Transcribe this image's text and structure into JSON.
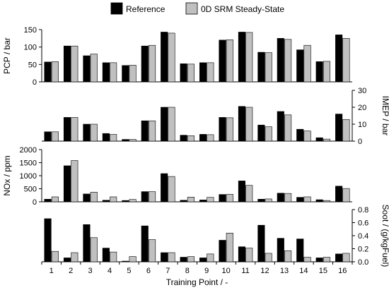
{
  "chart_data": {
    "type": "bar",
    "legend": {
      "placement": "top-center",
      "entries": [
        {
          "name": "Reference",
          "color": "#000000"
        },
        {
          "name": "0D SRM Steady-State",
          "color": "#c0c0c0"
        }
      ]
    },
    "xlabel": "Training Point / -",
    "categories": [
      "1",
      "2",
      "3",
      "4",
      "5",
      "6",
      "7",
      "8",
      "9",
      "10",
      "11",
      "12",
      "13",
      "14",
      "15",
      "16"
    ],
    "panels": [
      {
        "id": "pcp",
        "ylabel": "PCP / bar",
        "axis_side": "left",
        "ylim": [
          0,
          150
        ],
        "yticks": [
          0,
          50,
          100,
          150
        ],
        "series": [
          {
            "name": "Reference",
            "values": [
              57,
              103,
              75,
              55,
              47,
              103,
              143,
              52,
              55,
              120,
              143,
              85,
              125,
              92,
              58,
              135
            ]
          },
          {
            "name": "0D SRM Steady-State",
            "values": [
              58,
              103,
              80,
              55,
              48,
              105,
              140,
              51,
              55,
              121,
              142,
              84,
              122,
              105,
              59,
              125
            ]
          }
        ]
      },
      {
        "id": "imep",
        "ylabel": "IMEP / bar",
        "axis_side": "right",
        "ylim": [
          0,
          30
        ],
        "yticks": [
          0,
          10,
          20,
          30
        ],
        "series": [
          {
            "name": "Reference",
            "values": [
              5.5,
              14,
              10,
              4.5,
              1,
              12,
              20,
              3.5,
              4,
              14,
              20.5,
              9.5,
              17.5,
              7,
              2,
              16
            ]
          },
          {
            "name": "0D SRM Steady-State",
            "values": [
              5.5,
              14,
              10,
              4,
              1,
              12,
              20,
              3.2,
              3.8,
              13.8,
              20,
              8.5,
              15.5,
              6,
              1.2,
              12.8
            ]
          }
        ]
      },
      {
        "id": "nox",
        "ylabel": "NOx / ppm",
        "axis_side": "left",
        "ylim": [
          0,
          2000
        ],
        "yticks": [
          0,
          500,
          1000,
          1500,
          2000
        ],
        "series": [
          {
            "name": "Reference",
            "values": [
              100,
              1380,
              300,
              60,
              50,
              390,
              1080,
              60,
              70,
              280,
              800,
              100,
              330,
              170,
              80,
              600
            ]
          },
          {
            "name": "0D SRM Steady-State",
            "values": [
              190,
              1580,
              370,
              190,
              90,
              390,
              970,
              180,
              170,
              290,
              630,
              110,
              320,
              190,
              50,
              510
            ]
          }
        ]
      },
      {
        "id": "soot",
        "ylabel": "Soot / (g/kgFuel)",
        "axis_side": "right",
        "ylim": [
          0,
          0.8
        ],
        "yticks": [
          0.0,
          0.2,
          0.4,
          0.6,
          0.8
        ],
        "ytick_labels": [
          "0.0",
          "0.2",
          "0.4",
          "0.6",
          "0.8"
        ],
        "series": [
          {
            "name": "Reference",
            "values": [
              0.66,
              0.06,
              0.57,
              0.21,
              0.01,
              0.55,
              0.14,
              0.07,
              0.06,
              0.33,
              0.23,
              0.56,
              0.36,
              0.35,
              0.06,
              0.12
            ]
          },
          {
            "name": "0D SRM Steady-State",
            "values": [
              0.16,
              0.14,
              0.37,
              0.15,
              0.08,
              0.34,
              0.14,
              0.08,
              0.12,
              0.44,
              0.21,
              0.13,
              0.17,
              0.07,
              0.07,
              0.13
            ]
          }
        ]
      }
    ]
  }
}
